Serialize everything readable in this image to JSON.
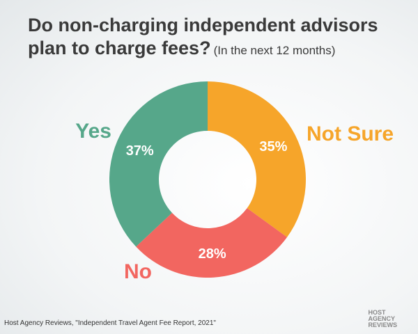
{
  "chart_data": {
    "type": "donut",
    "title": "Do non-charging independent advisors plan to charge fees?",
    "subtitle": "(In the next 12 months)",
    "categories": [
      "Not Sure",
      "No",
      "Yes"
    ],
    "values": [
      35,
      28,
      37
    ],
    "value_labels": [
      "35%",
      "28%",
      "37%"
    ],
    "colors": [
      "#f6a52a",
      "#f26660",
      "#56a78a"
    ],
    "source": "Host Agency Reviews, \"Independent Travel Agent Fee Report, 2021\"",
    "logo": [
      "HOST",
      "AGENCY",
      "REVIEWS"
    ]
  }
}
